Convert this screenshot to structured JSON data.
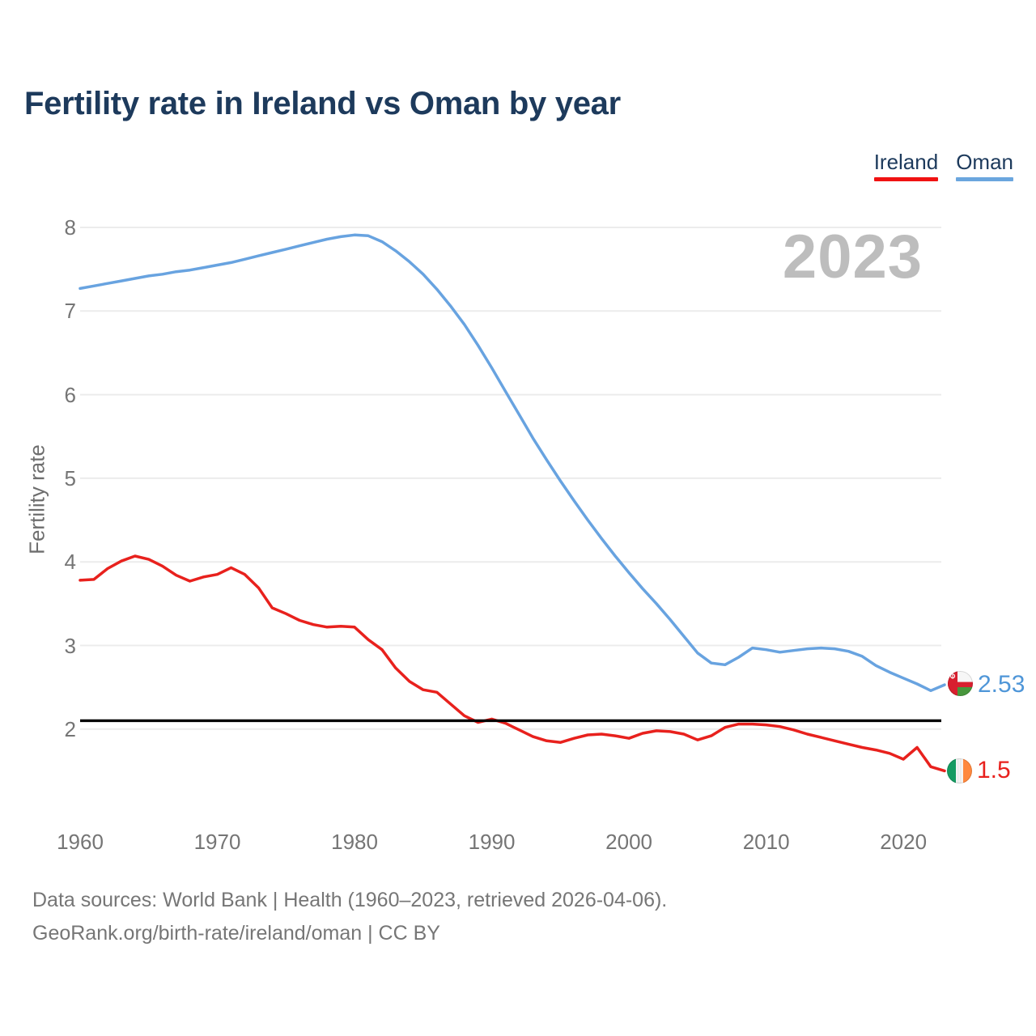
{
  "title": "Fertility rate in Ireland vs Oman by year",
  "watermark": "2023",
  "legend": {
    "items": [
      {
        "label": "Ireland",
        "color": "#f01212"
      },
      {
        "label": "Oman",
        "color": "#6ba6de"
      }
    ]
  },
  "chart_data": {
    "type": "line",
    "title": "Fertility rate in Ireland vs Oman by year",
    "xlabel": "",
    "ylabel": "Fertility rate",
    "grid": true,
    "legend_position": "top-right",
    "xlim": [
      1960,
      2023
    ],
    "ylim": [
      1.4,
      8.2
    ],
    "xticks": [
      1960,
      1970,
      1980,
      1990,
      2000,
      2010,
      2020
    ],
    "yticks": [
      2,
      3,
      4,
      5,
      6,
      7,
      8
    ],
    "reference_line": {
      "value": 2.1,
      "color": "#000000"
    },
    "x": [
      1960,
      1961,
      1962,
      1963,
      1964,
      1965,
      1966,
      1967,
      1968,
      1969,
      1970,
      1971,
      1972,
      1973,
      1974,
      1975,
      1976,
      1977,
      1978,
      1979,
      1980,
      1981,
      1982,
      1983,
      1984,
      1985,
      1986,
      1987,
      1988,
      1989,
      1990,
      1991,
      1992,
      1993,
      1994,
      1995,
      1996,
      1997,
      1998,
      1999,
      2000,
      2001,
      2002,
      2003,
      2004,
      2005,
      2006,
      2007,
      2008,
      2009,
      2010,
      2011,
      2012,
      2013,
      2014,
      2015,
      2016,
      2017,
      2018,
      2019,
      2020,
      2021,
      2022,
      2023
    ],
    "series": [
      {
        "name": "Oman",
        "color": "#68a3e0",
        "end_label": "2.53",
        "values": [
          7.27,
          7.3,
          7.33,
          7.36,
          7.39,
          7.42,
          7.44,
          7.47,
          7.49,
          7.52,
          7.55,
          7.58,
          7.62,
          7.66,
          7.7,
          7.74,
          7.78,
          7.82,
          7.86,
          7.89,
          7.91,
          7.9,
          7.83,
          7.72,
          7.59,
          7.44,
          7.26,
          7.06,
          6.84,
          6.59,
          6.32,
          6.04,
          5.76,
          5.48,
          5.22,
          4.97,
          4.73,
          4.5,
          4.28,
          4.07,
          3.87,
          3.68,
          3.5,
          3.31,
          3.11,
          2.91,
          2.79,
          2.77,
          2.86,
          2.97,
          2.95,
          2.92,
          2.94,
          2.96,
          2.97,
          2.96,
          2.93,
          2.87,
          2.76,
          2.68,
          2.61,
          2.54,
          2.46,
          2.53
        ]
      },
      {
        "name": "Ireland",
        "color": "#e8211d",
        "end_label": "1.5",
        "values": [
          3.78,
          3.79,
          3.92,
          4.01,
          4.07,
          4.03,
          3.95,
          3.84,
          3.77,
          3.82,
          3.85,
          3.93,
          3.85,
          3.69,
          3.45,
          3.38,
          3.3,
          3.25,
          3.22,
          3.23,
          3.22,
          3.07,
          2.95,
          2.73,
          2.57,
          2.47,
          2.44,
          2.3,
          2.16,
          2.08,
          2.12,
          2.07,
          1.99,
          1.91,
          1.86,
          1.84,
          1.89,
          1.93,
          1.94,
          1.92,
          1.89,
          1.95,
          1.98,
          1.97,
          1.94,
          1.87,
          1.92,
          2.02,
          2.06,
          2.06,
          2.05,
          2.03,
          1.99,
          1.94,
          1.9,
          1.86,
          1.82,
          1.78,
          1.75,
          1.71,
          1.64,
          1.78,
          1.55,
          1.5
        ]
      }
    ]
  },
  "footer": {
    "line1": "Data sources: World Bank | Health (1960–2023, retrieved 2026-04-06).",
    "line2": "GeoRank.org/birth-rate/ireland/oman | CC BY"
  }
}
